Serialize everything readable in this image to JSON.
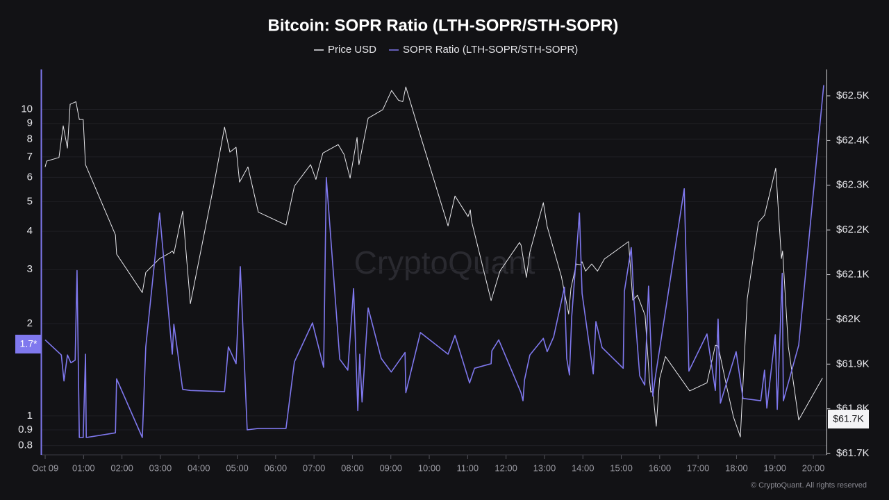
{
  "chart_data": {
    "type": "line",
    "title": "Bitcoin: SOPR Ratio (LTH-SOPR/STH-SOPR)",
    "watermark": "CryptoQuant",
    "footer": "© CryptoQuant. All rights reserved",
    "badges": [
      "1.7*",
      "$61.7K"
    ],
    "ylog": true,
    "grid": true,
    "xlim": [
      -0.1,
      20.35
    ],
    "xticks": [
      {
        "value": 0,
        "label": "Oct 09"
      },
      {
        "value": 1,
        "label": "01:00"
      },
      {
        "value": 2,
        "label": "02:00"
      },
      {
        "value": 3,
        "label": "03:00"
      },
      {
        "value": 4,
        "label": "04:00"
      },
      {
        "value": 5,
        "label": "05:00"
      },
      {
        "value": 6,
        "label": "06:00"
      },
      {
        "value": 7,
        "label": "07:00"
      },
      {
        "value": 8,
        "label": "08:00"
      },
      {
        "value": 9,
        "label": "09:00"
      },
      {
        "value": 10,
        "label": "10:00"
      },
      {
        "value": 11,
        "label": "11:00"
      },
      {
        "value": 12,
        "label": "12:00"
      },
      {
        "value": 13,
        "label": "13:00"
      },
      {
        "value": 14,
        "label": "14:00"
      },
      {
        "value": 15,
        "label": "15:00"
      },
      {
        "value": 16,
        "label": "16:00"
      },
      {
        "value": 17,
        "label": "17:00"
      },
      {
        "value": 18,
        "label": "18:00"
      },
      {
        "value": 19,
        "label": "19:00"
      },
      {
        "value": 20,
        "label": "20:00"
      }
    ],
    "ylim": [
      0.746,
      13.5
    ],
    "yticks": [
      0.8,
      0.9,
      1,
      2,
      3,
      4,
      5,
      6,
      7,
      8,
      9,
      10
    ],
    "y2lim": [
      61697,
      62559
    ],
    "y2ticks": [
      {
        "value": 61700,
        "label": "$61.7K"
      },
      {
        "value": 61800,
        "label": "$61.8K"
      },
      {
        "value": 61900,
        "label": "$61.9K"
      },
      {
        "value": 62000,
        "label": "$62K"
      },
      {
        "value": 62100,
        "label": "$62.1K"
      },
      {
        "value": 62200,
        "label": "$62.2K"
      },
      {
        "value": 62300,
        "label": "$62.3K"
      },
      {
        "value": 62400,
        "label": "$62.4K"
      },
      {
        "value": 62500,
        "label": "$62.5K"
      }
    ],
    "series": [
      {
        "name": "Price USD",
        "color": "#e8e8ec",
        "axis": "y2",
        "x": [
          0,
          0.04,
          0.36,
          0.47,
          0.58,
          0.65,
          0.8,
          0.89,
          0.99,
          1.05,
          1.83,
          1.86,
          2.53,
          2.62,
          2.98,
          3.25,
          3.31,
          3.35,
          3.58,
          3.78,
          4.38,
          4.67,
          4.81,
          4.97,
          5.06,
          5.28,
          5.55,
          6.27,
          6.49,
          6.91,
          7.05,
          7.14,
          7.23,
          7.63,
          7.78,
          7.94,
          8.12,
          8.17,
          8.41,
          8.79,
          9.02,
          9.2,
          9.31,
          9.39,
          9.77,
          10.49,
          10.67,
          11.01,
          11.07,
          11.1,
          11.61,
          11.84,
          12.35,
          12.39,
          12.53,
          12.62,
          12.97,
          13.07,
          13.44,
          13.63,
          13.69,
          13.83,
          13.94,
          13.98,
          14.07,
          14.23,
          14.38,
          14.56,
          15.19,
          15.3,
          15.42,
          15.62,
          15.73,
          15.77,
          15.82,
          15.91,
          16.0,
          16.15,
          16.78,
          17.23,
          17.45,
          17.52,
          17.74,
          17.92,
          18.1,
          18.28,
          18.57,
          18.73,
          19.02,
          19.17,
          19.2,
          19.35,
          19.62,
          20.24
        ],
        "values": [
          62341,
          62354,
          62362,
          62433,
          62383,
          62481,
          62487,
          62447,
          62447,
          62346,
          62189,
          62146,
          62060,
          62105,
          62136,
          62149,
          62153,
          62147,
          62242,
          62035,
          62295,
          62430,
          62374,
          62385,
          62307,
          62341,
          62240,
          62211,
          62298,
          62346,
          62313,
          62344,
          62372,
          62391,
          62369,
          62316,
          62407,
          62346,
          62450,
          62469,
          62512,
          62490,
          62487,
          62520,
          62411,
          62209,
          62276,
          62230,
          62245,
          62220,
          62042,
          62108,
          62172,
          62166,
          62094,
          62150,
          62261,
          62208,
          62096,
          62012,
          62070,
          62124,
          62122,
          62129,
          62108,
          62124,
          62108,
          62135,
          62174,
          62043,
          62054,
          62009,
          61868,
          61837,
          61840,
          61761,
          61868,
          61917,
          61840,
          61858,
          61942,
          61941,
          61851,
          61782,
          61737,
          62046,
          62217,
          62233,
          62338,
          62136,
          62153,
          61939,
          61775,
          61869
        ]
      },
      {
        "name": "SOPR Ratio (LTH-SOPR/STH-SOPR)",
        "color": "#7f78ee",
        "axis": "y",
        "x": [
          0,
          0.42,
          0.49,
          0.58,
          0.67,
          0.78,
          0.83,
          0.89,
          0.99,
          1.05,
          1.07,
          1.83,
          1.86,
          2.53,
          2.62,
          2.98,
          3.31,
          3.35,
          3.58,
          3.78,
          4.67,
          4.77,
          4.97,
          5.08,
          5.26,
          5.55,
          6.27,
          6.49,
          6.96,
          7.25,
          7.32,
          7.67,
          7.88,
          8.03,
          8.14,
          8.19,
          8.25,
          8.41,
          8.75,
          9.01,
          9.37,
          9.39,
          9.77,
          10.49,
          10.67,
          11.05,
          11.18,
          11.61,
          11.63,
          11.81,
          12.39,
          12.44,
          12.48,
          12.62,
          12.97,
          13.07,
          13.24,
          13.52,
          13.58,
          13.65,
          13.71,
          13.91,
          13.98,
          14.27,
          14.34,
          14.5,
          15.05,
          15.08,
          15.26,
          15.33,
          15.48,
          15.61,
          15.71,
          15.82,
          15.89,
          16.64,
          16.76,
          17.23,
          17.45,
          17.52,
          17.58,
          17.99,
          18.17,
          18.63,
          18.73,
          18.79,
          19.01,
          19.06,
          19.19,
          19.22,
          19.62,
          20.27
        ],
        "values": [
          1.77,
          1.58,
          1.3,
          1.58,
          1.49,
          1.52,
          2.98,
          0.85,
          0.85,
          1.59,
          0.85,
          0.88,
          1.32,
          0.85,
          1.68,
          4.59,
          1.59,
          1.99,
          1.22,
          1.21,
          1.2,
          1.68,
          1.48,
          3.07,
          0.9,
          0.91,
          0.91,
          1.5,
          2.01,
          1.44,
          5.99,
          1.53,
          1.41,
          2.6,
          1.04,
          1.59,
          1.11,
          2.25,
          1.54,
          1.39,
          1.61,
          1.19,
          1.87,
          1.59,
          1.83,
          1.28,
          1.43,
          1.48,
          1.63,
          1.77,
          1.19,
          1.12,
          1.31,
          1.58,
          1.79,
          1.62,
          1.81,
          2.63,
          1.54,
          1.36,
          2.11,
          4.59,
          2.51,
          1.37,
          2.03,
          1.67,
          1.43,
          2.55,
          3.54,
          2.38,
          1.35,
          1.26,
          2.65,
          1.16,
          1.35,
          5.51,
          1.4,
          1.85,
          1.21,
          2.07,
          1.1,
          1.62,
          1.14,
          1.12,
          1.41,
          1.06,
          1.84,
          1.05,
          2.92,
          1.12,
          1.7,
          12.0
        ]
      }
    ]
  }
}
